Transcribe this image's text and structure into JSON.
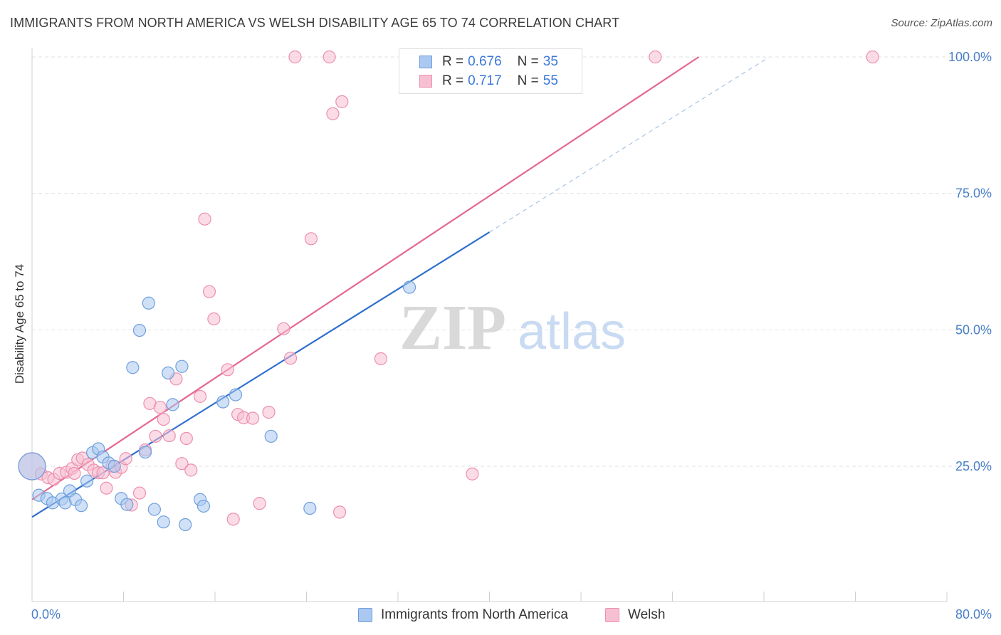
{
  "title": "IMMIGRANTS FROM NORTH AMERICA VS WELSH DISABILITY AGE 65 TO 74 CORRELATION CHART",
  "source": "Source: ZipAtlas.com",
  "watermark": {
    "zip": "ZIP",
    "atlas": "atlas"
  },
  "chart_data": {
    "type": "scatter",
    "ylabel": "Disability Age 65 to 74",
    "xlim": [
      0,
      80
    ],
    "ylim": [
      0,
      103
    ],
    "x_tick_labels": [
      "0.0%",
      "80.0%"
    ],
    "y_ticks": [
      {
        "value": 25,
        "label": "25.0%"
      },
      {
        "value": 50,
        "label": "50.0%"
      },
      {
        "value": 75,
        "label": "75.0%"
      },
      {
        "value": 100,
        "label": "100.0%"
      }
    ],
    "grid": true,
    "legend_position": "bottom",
    "stats": [
      {
        "r_label": "R =",
        "r_value": "0.676",
        "n_label": "N =",
        "n_value": "35"
      },
      {
        "r_label": "R =",
        "r_value": "0.717",
        "n_label": "N =",
        "n_value": "55"
      }
    ],
    "series": [
      {
        "name": "Immigrants from North America",
        "fill": "#aac8f0",
        "stroke": "#6f9fdc",
        "line_color": "#2f6fce",
        "trend": {
          "x0": 0,
          "y0": 15.7,
          "x1": 40,
          "y1": 67.9,
          "dashed_x1": 64.4,
          "dashed_y1": 99.9
        },
        "points": [
          [
            0.0,
            25.0
          ],
          [
            0.6,
            19.7
          ],
          [
            1.3,
            19.1
          ],
          [
            1.8,
            18.3
          ],
          [
            2.6,
            19.0
          ],
          [
            2.9,
            18.3
          ],
          [
            3.3,
            20.5
          ],
          [
            3.8,
            18.9
          ],
          [
            4.3,
            17.8
          ],
          [
            4.8,
            22.3
          ],
          [
            5.3,
            27.5
          ],
          [
            5.8,
            28.2
          ],
          [
            6.2,
            26.7
          ],
          [
            6.7,
            25.6
          ],
          [
            7.2,
            25.0
          ],
          [
            7.8,
            19.1
          ],
          [
            8.3,
            18.0
          ],
          [
            8.8,
            43.1
          ],
          [
            9.4,
            49.9
          ],
          [
            9.9,
            27.6
          ],
          [
            10.2,
            54.9
          ],
          [
            10.7,
            17.1
          ],
          [
            11.5,
            14.8
          ],
          [
            11.9,
            42.1
          ],
          [
            12.3,
            36.3
          ],
          [
            13.1,
            43.3
          ],
          [
            13.4,
            14.3
          ],
          [
            14.7,
            18.9
          ],
          [
            15.0,
            17.7
          ],
          [
            16.7,
            36.8
          ],
          [
            17.8,
            38.1
          ],
          [
            20.9,
            30.5
          ],
          [
            24.3,
            17.3
          ],
          [
            33.0,
            57.8
          ],
          [
            40.0,
            100.0
          ]
        ]
      },
      {
        "name": "Welsh",
        "fill": "#f7c0d2",
        "stroke": "#ec8fae",
        "line_color": "#e4678f",
        "trend": {
          "x0": 0,
          "y0": 18.9,
          "x1": 58.3,
          "y1": 100.0
        },
        "points": [
          [
            0.0,
            25.0
          ],
          [
            0.8,
            23.6
          ],
          [
            1.4,
            22.9
          ],
          [
            1.9,
            22.6
          ],
          [
            2.4,
            23.7
          ],
          [
            3.0,
            23.9
          ],
          [
            3.5,
            24.6
          ],
          [
            3.7,
            23.7
          ],
          [
            4.0,
            26.2
          ],
          [
            4.4,
            26.5
          ],
          [
            4.9,
            25.3
          ],
          [
            5.4,
            24.3
          ],
          [
            5.8,
            23.8
          ],
          [
            6.2,
            23.8
          ],
          [
            6.5,
            21.0
          ],
          [
            7.0,
            25.0
          ],
          [
            7.3,
            23.9
          ],
          [
            7.8,
            24.8
          ],
          [
            8.2,
            26.4
          ],
          [
            8.7,
            17.9
          ],
          [
            9.4,
            20.1
          ],
          [
            9.9,
            28.0
          ],
          [
            10.3,
            36.5
          ],
          [
            10.8,
            30.5
          ],
          [
            11.2,
            35.8
          ],
          [
            11.5,
            33.6
          ],
          [
            12.0,
            30.6
          ],
          [
            12.6,
            41.0
          ],
          [
            13.1,
            25.5
          ],
          [
            13.5,
            30.1
          ],
          [
            13.9,
            24.3
          ],
          [
            14.7,
            37.8
          ],
          [
            15.1,
            70.3
          ],
          [
            15.5,
            57.0
          ],
          [
            15.9,
            52.0
          ],
          [
            17.1,
            42.7
          ],
          [
            17.6,
            15.3
          ],
          [
            18.0,
            34.5
          ],
          [
            18.5,
            33.9
          ],
          [
            19.3,
            33.8
          ],
          [
            19.9,
            18.2
          ],
          [
            20.7,
            34.9
          ],
          [
            22.0,
            50.2
          ],
          [
            22.6,
            44.8
          ],
          [
            23.0,
            100.0
          ],
          [
            24.4,
            66.7
          ],
          [
            26.0,
            100.0
          ],
          [
            26.3,
            89.6
          ],
          [
            26.9,
            16.6
          ],
          [
            27.1,
            91.8
          ],
          [
            30.5,
            44.7
          ],
          [
            34.8,
            100.0
          ],
          [
            38.5,
            23.6
          ],
          [
            54.5,
            100.0
          ],
          [
            73.5,
            100.0
          ]
        ]
      }
    ]
  }
}
